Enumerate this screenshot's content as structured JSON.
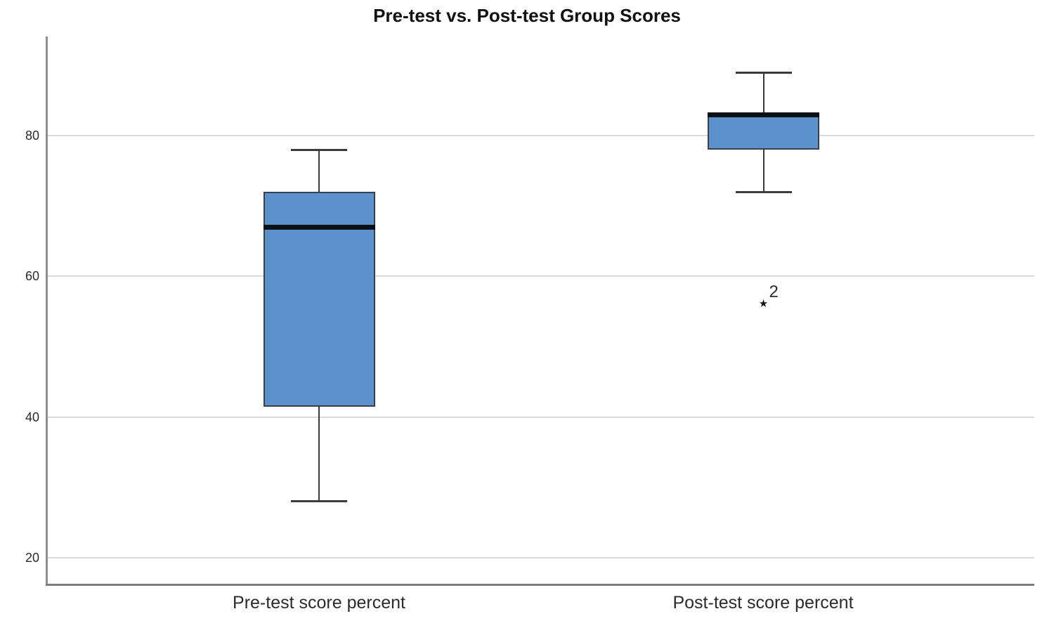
{
  "chart_data": {
    "type": "boxplot",
    "title": "Pre-test vs. Post-test Group Scores",
    "xlabel": "",
    "ylabel": "",
    "categories": [
      "Pre-test score percent",
      "Post-test score percent"
    ],
    "series": [
      {
        "name": "Pre-test score percent",
        "whisker_low": 28,
        "q1": 41.5,
        "median": 67,
        "q3": 72,
        "whisker_high": 78,
        "outliers": []
      },
      {
        "name": "Post-test score percent",
        "whisker_low": 72,
        "q1": 78,
        "median": 83,
        "q3": 83,
        "whisker_high": 89,
        "outliers": [
          {
            "value": 56,
            "label": "2",
            "marker": "extreme-outlier-star"
          }
        ]
      }
    ],
    "yticks": [
      20,
      40,
      60,
      80
    ],
    "ylim": [
      16.2,
      94.1
    ],
    "grid": "horizontal",
    "legend": "none",
    "colors": {
      "box_fill": "#5b92cd",
      "box_border": "#39404a",
      "median": "#0d1014",
      "whisker": "#3a3a3a",
      "gridline": "#d9d9d9",
      "axis_left": "#8f8f8f",
      "axis_bottom": "#7d7d7d",
      "text": "#2b2b2b",
      "background": "#ffffff"
    }
  },
  "icons": {
    "extreme-outlier-star": "★"
  }
}
